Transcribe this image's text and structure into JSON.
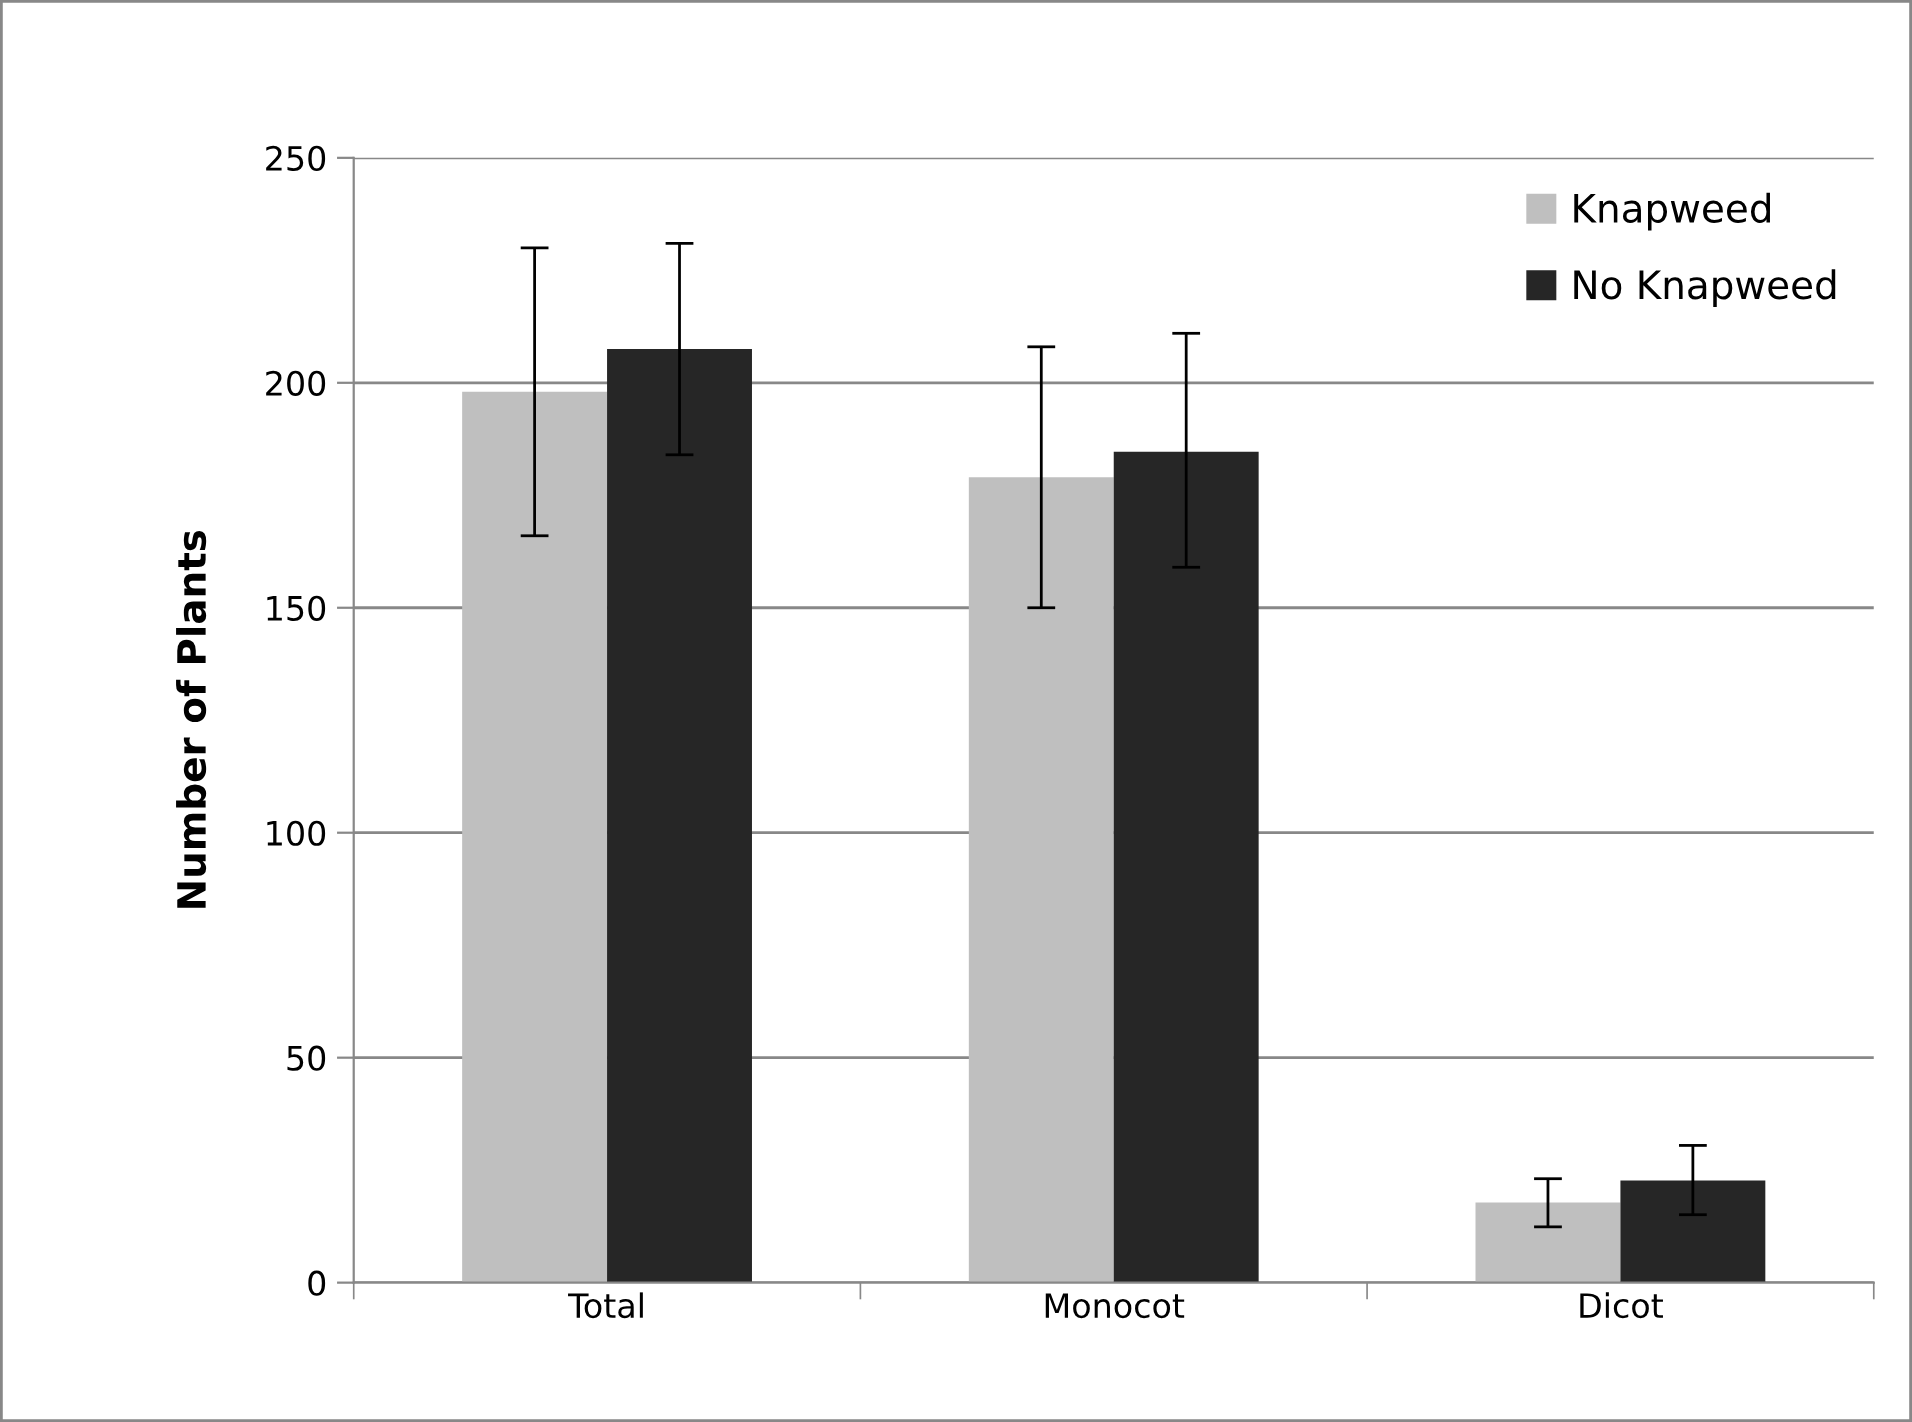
{
  "chart_data": {
    "type": "bar",
    "ylabel": "Number of Plants",
    "categories": [
      "Total",
      "Monocot",
      "Dicot"
    ],
    "series": [
      {
        "name": "Knapweed",
        "color": "#bfbfbf",
        "values": [
          198,
          179,
          17.8
        ],
        "errors": [
          [
            166,
            230
          ],
          [
            150,
            208
          ],
          [
            12.4,
            23.1
          ]
        ]
      },
      {
        "name": "No Knapweed",
        "color": "#262626",
        "values": [
          207.5,
          184.7,
          22.7
        ],
        "errors": [
          [
            184,
            231
          ],
          [
            159,
            211
          ],
          [
            15.1,
            30.5
          ]
        ]
      }
    ],
    "ylim": [
      0,
      250
    ],
    "yticks": [
      0,
      50,
      100,
      150,
      200,
      250
    ],
    "grid": "y",
    "legend": "top right"
  }
}
